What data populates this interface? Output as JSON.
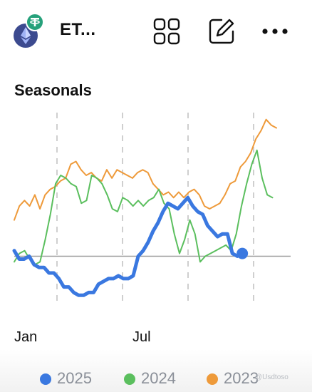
{
  "header": {
    "pair_title": "ET...",
    "icons": {
      "coin": "ethereum-icon",
      "badge": "tether-icon",
      "grid": "grid-icon",
      "edit": "edit-icon",
      "more": "more-icon"
    }
  },
  "section": {
    "title": "Seasonals"
  },
  "colors": {
    "s2025": "#3a78e0",
    "s2024": "#5bbf5e",
    "s2023": "#ee9a3a",
    "baseline": "#9a9a9a",
    "gridline": "#cfcfcf"
  },
  "chart_data": {
    "type": "line",
    "x_axis_labels": [
      "Jan",
      "Jul"
    ],
    "series": [
      {
        "name": "2025",
        "values": [
          2,
          -1,
          -1,
          0,
          -3,
          -4,
          -4,
          -6,
          -6,
          -8,
          -11,
          -11,
          -13,
          -14,
          -14,
          -13,
          -13,
          -10,
          -9,
          -8,
          -8,
          -7,
          -8,
          -8,
          -7,
          0,
          2,
          5,
          9,
          12,
          16,
          19,
          18,
          17,
          19,
          21,
          18,
          16,
          15,
          11,
          9,
          7,
          8,
          8,
          1,
          0,
          1
        ]
      },
      {
        "name": "2024",
        "values": [
          -2,
          1,
          2,
          -1,
          -3,
          -2,
          6,
          15,
          26,
          29,
          28,
          26,
          25,
          19,
          20,
          29,
          28,
          26,
          22,
          17,
          16,
          21,
          20,
          18,
          20,
          18,
          20,
          21,
          24,
          19,
          17,
          8,
          1,
          6,
          13,
          8,
          -2,
          0,
          1,
          2,
          3,
          4,
          2,
          8,
          18,
          26,
          33,
          38,
          28,
          22,
          21
        ]
      },
      {
        "name": "2023",
        "values": [
          13,
          18,
          20,
          18,
          22,
          17,
          22,
          24,
          25,
          27,
          28,
          33,
          34,
          31,
          29,
          30,
          28,
          27,
          31,
          28,
          31,
          30,
          29,
          28,
          30,
          31,
          30,
          26,
          24,
          22,
          23,
          21,
          23,
          21,
          23,
          24,
          22,
          18,
          17,
          18,
          19,
          22,
          26,
          27,
          32,
          34,
          37,
          42,
          45,
          49,
          47,
          46
        ]
      }
    ],
    "baseline": 0,
    "ylim": [
      -18,
      52
    ],
    "grid_vertical_dashed": true,
    "legend": [
      "2025",
      "2024",
      "2023"
    ],
    "legend_position": "bottom"
  },
  "axis": {
    "jan": "Jan",
    "jul": "Jul"
  },
  "legend": {
    "l2025": "2025",
    "l2024": "2024",
    "l2023": "2023"
  },
  "watermark": "@Usdtoso"
}
